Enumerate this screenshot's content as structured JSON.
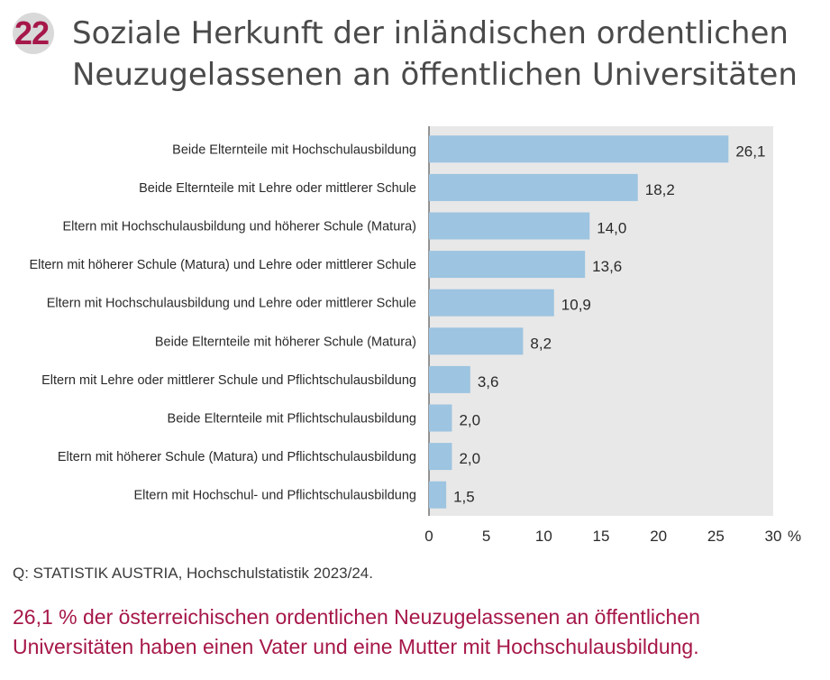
{
  "figure": {
    "number": "22",
    "title": "Soziale Herkunft der inländischen ordentlichen Neuzugelassenen an öffentlichen Universitäten",
    "source": "Q: STATISTIK AUSTRIA, Hochschulstatistik 2023/24.",
    "note": "26,1 % der österreichischen ordentlichen Neuzugelassenen an öffentlichen Universitäten haben einen Vater und eine Mutter mit Hochschulausbildung."
  },
  "colors": {
    "accent": "#a6174a",
    "bar": "#9dc4e0",
    "plot_bg": "#e8e8e8",
    "badge": "#d9d9d9"
  },
  "chart_data": {
    "type": "bar",
    "orientation": "horizontal",
    "categories": [
      "Beide Elternteile mit Hochschulausbildung",
      "Beide Elternteile mit Lehre oder mittlerer Schule",
      "Eltern mit Hochschulausbildung und höherer Schule (Matura)",
      "Eltern mit höherer Schule (Matura) und Lehre oder mittlerer Schule",
      "Eltern mit Hochschulausbildung und Lehre oder mittlerer Schule",
      "Beide Elternteile mit höherer Schule (Matura)",
      "Eltern mit Lehre oder mittlerer Schule und Pflichtschulausbildung",
      "Beide Elternteile mit Pflichtschulausbildung",
      "Eltern mit höherer Schule (Matura) und Pflichtschulausbildung",
      "Eltern mit Hochschul- und Pflichtschulausbildung"
    ],
    "values": [
      26.1,
      18.2,
      14.0,
      13.6,
      10.9,
      8.2,
      3.6,
      2.0,
      2.0,
      1.5
    ],
    "value_labels": [
      "26,1",
      "18,2",
      "14,0",
      "13,6",
      "10,9",
      "8,2",
      "3,6",
      "2,0",
      "2,0",
      "1,5"
    ],
    "xlim": [
      0,
      30
    ],
    "xticks": [
      0,
      5,
      10,
      15,
      20,
      25,
      30
    ],
    "xtick_labels": [
      "0",
      "5",
      "10",
      "15",
      "20",
      "25",
      "30"
    ],
    "xunit": "%",
    "title": "",
    "xlabel": "",
    "ylabel": "",
    "grid": false
  }
}
